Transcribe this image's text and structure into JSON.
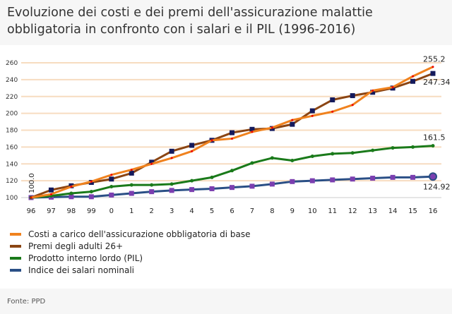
{
  "title": "Evoluzione dei costi e dei premi dell'assicurazione malattie obbligatoria in confronto con i salari e il PIL (1996-2016)",
  "source": "Fonte: PPD",
  "chart_data": {
    "type": "line",
    "title": "Evoluzione dei costi e dei premi dell'assicurazione malattie obbligatoria in confronto con i salari e il PIL (1996-2016)",
    "x": [
      "96",
      "97",
      "98",
      "99",
      "0",
      "1",
      "2",
      "3",
      "4",
      "5",
      "6",
      "7",
      "8",
      "9",
      "10",
      "11",
      "12",
      "13",
      "14",
      "15",
      "16"
    ],
    "yticks": [
      100,
      120,
      140,
      160,
      180,
      200,
      220,
      240,
      260
    ],
    "ylim": [
      100,
      260
    ],
    "grid": true,
    "legend_position": "bottom-left",
    "start_label": "100.0",
    "series": [
      {
        "name": "Costi a carico dell'assicurazione obbligatoria di base",
        "color": "#f0821e",
        "end_label": "255.2",
        "values": [
          100,
          104,
          113,
          119,
          127,
          133,
          140,
          147,
          155,
          168,
          170,
          178,
          183,
          192,
          197,
          202,
          210,
          227,
          231,
          244,
          255.2
        ]
      },
      {
        "name": "Premi degli adulti 26+",
        "color": "#8b4513",
        "end_label": "247.34",
        "values": [
          100,
          109,
          114,
          118,
          122,
          129,
          142,
          155,
          162,
          168,
          177,
          181,
          182,
          187,
          203,
          216,
          221,
          225,
          230,
          238,
          247.34
        ]
      },
      {
        "name": "Prodotto interno lordo (PIL)",
        "color": "#1a7a1a",
        "end_label": "161.5",
        "values": [
          100,
          102,
          105,
          107,
          113,
          115,
          115,
          116,
          120,
          124,
          132,
          141,
          147,
          144,
          149,
          152,
          153,
          156,
          159,
          160,
          161.5
        ]
      },
      {
        "name": "Indice dei salari nominali",
        "color": "#2a4f86",
        "end_label": "124.92",
        "values": [
          100,
          100.5,
          101,
          101,
          103,
          105,
          107,
          108.5,
          109.5,
          110.5,
          112,
          113.5,
          116,
          119,
          120,
          121,
          122,
          123,
          124,
          124,
          124.92
        ]
      }
    ]
  }
}
